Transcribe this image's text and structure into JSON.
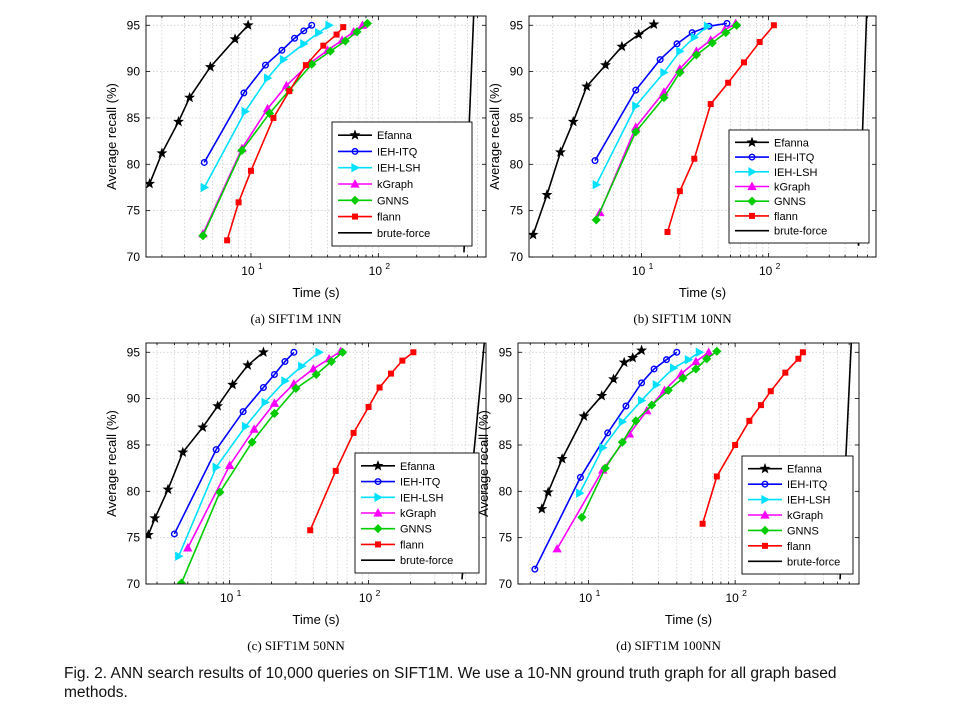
{
  "figure": {
    "caption_line1": "Fig. 2.  ANN search results of 10,000 queries on SIFT1M. We use a 10-NN ground truth graph for all graph based",
    "caption_line2": "methods."
  },
  "styles": {
    "Efanna": {
      "color": "#000000",
      "marker": "star"
    },
    "IEH-ITQ": {
      "color": "#0000ff",
      "marker": "circle"
    },
    "IEH-LSH": {
      "color": "#00e0ff",
      "marker": "triangle-right"
    },
    "kGraph": {
      "color": "#ff00ff",
      "marker": "triangle-up"
    },
    "GNNS": {
      "color": "#00cc00",
      "marker": "diamond"
    },
    "flann": {
      "color": "#ff0000",
      "marker": "square"
    },
    "brute-force": {
      "color": "#000000",
      "marker": "none"
    }
  },
  "chart_data": [
    {
      "type": "line",
      "subcaption": "(a) SIFT1M 1NN",
      "xlabel": "Time (s)",
      "ylabel": "Average recall (%)",
      "xscale": "log",
      "xlim": [
        1.5,
        700
      ],
      "ylim": [
        70,
        96
      ],
      "xticks": [
        10,
        100
      ],
      "xtick_labels": [
        [
          "10",
          "1"
        ],
        [
          "10",
          "2"
        ]
      ],
      "yticks": [
        70,
        75,
        80,
        85,
        90,
        95
      ],
      "grid": true,
      "legend": "center-right",
      "series": [
        {
          "name": "Efanna",
          "x": [
            1.6,
            2.0,
            2.7,
            3.3,
            4.8,
            7.5,
            9.5
          ],
          "y": [
            77.9,
            81.2,
            84.6,
            87.2,
            90.5,
            93.5,
            95.0
          ]
        },
        {
          "name": "IEH-ITQ",
          "x": [
            4.3,
            8.8,
            13.0,
            17.5,
            22.0,
            26.0,
            30.0
          ],
          "y": [
            80.2,
            87.7,
            90.7,
            92.3,
            93.6,
            94.4,
            95.0
          ]
        },
        {
          "name": "IEH-LSH",
          "x": [
            4.3,
            9.0,
            13.5,
            18.0,
            26.0,
            34.0,
            41.0
          ],
          "y": [
            77.5,
            85.7,
            89.3,
            91.3,
            93.0,
            94.2,
            95.0
          ]
        },
        {
          "name": "kGraph",
          "x": [
            4.2,
            8.5,
            13.5,
            19.0,
            29.0,
            40.0,
            52.0,
            64.0,
            75.0
          ],
          "y": [
            72.5,
            81.7,
            86.0,
            88.5,
            90.9,
            92.3,
            93.4,
            94.3,
            95.0
          ]
        },
        {
          "name": "GNNS",
          "x": [
            4.2,
            8.5,
            14.0,
            20.0,
            30.0,
            42.0,
            55.0,
            68.0,
            82.0
          ],
          "y": [
            72.3,
            81.5,
            85.5,
            88.0,
            90.8,
            92.2,
            93.3,
            94.3,
            95.2
          ]
        },
        {
          "name": "flann",
          "x": [
            6.5,
            8.0,
            10.0,
            15.0,
            20.0,
            27.0,
            37.0,
            47.0,
            53.0
          ],
          "y": [
            71.8,
            75.9,
            79.3,
            85.0,
            87.9,
            90.7,
            92.8,
            94.0,
            94.8
          ]
        },
        {
          "name": "brute-force",
          "x": [
            470,
            560
          ],
          "y": [
            70.5,
            96.0
          ]
        }
      ]
    },
    {
      "type": "line",
      "subcaption": "(b) SIFT1M 10NN",
      "xlabel": "Time (s)",
      "ylabel": "Average recall (%)",
      "xscale": "log",
      "xlim": [
        1.3,
        700
      ],
      "ylim": [
        70,
        96
      ],
      "xticks": [
        10,
        100
      ],
      "xtick_labels": [
        [
          "10",
          "1"
        ],
        [
          "10",
          "2"
        ]
      ],
      "yticks": [
        70,
        75,
        80,
        85,
        90,
        95
      ],
      "grid": true,
      "legend": "bottom-right",
      "series": [
        {
          "name": "Efanna",
          "x": [
            1.4,
            1.8,
            2.3,
            2.9,
            3.7,
            5.2,
            7.0,
            9.5,
            12.5
          ],
          "y": [
            72.4,
            76.7,
            81.3,
            84.6,
            88.4,
            90.7,
            92.7,
            94.0,
            95.1
          ]
        },
        {
          "name": "IEH-ITQ",
          "x": [
            4.3,
            9.0,
            14.0,
            19.0,
            25.0,
            34.0,
            47.0
          ],
          "y": [
            80.4,
            88.0,
            91.3,
            93.0,
            94.2,
            94.9,
            95.2
          ]
        },
        {
          "name": "IEH-LSH",
          "x": [
            4.4,
            9.0,
            15.0,
            20.0,
            26.0,
            33.0
          ],
          "y": [
            77.8,
            86.3,
            89.9,
            92.2,
            93.7,
            94.9
          ]
        },
        {
          "name": "kGraph",
          "x": [
            4.7,
            9.0,
            15.0,
            20.0,
            27.0,
            35.0,
            45.0,
            55.0
          ],
          "y": [
            74.8,
            84.0,
            87.8,
            90.3,
            92.2,
            93.4,
            94.5,
            95.2
          ]
        },
        {
          "name": "GNNS",
          "x": [
            4.4,
            9.0,
            15.0,
            20.0,
            27.0,
            36.0,
            46.0,
            56.0
          ],
          "y": [
            74.0,
            83.5,
            87.2,
            89.9,
            91.8,
            93.1,
            94.2,
            95.0
          ]
        },
        {
          "name": "flann",
          "x": [
            16.0,
            20.0,
            26.0,
            35.0,
            48.0,
            64.0,
            85.0,
            110.0
          ],
          "y": [
            72.7,
            77.1,
            80.6,
            86.5,
            88.8,
            91.0,
            93.2,
            95.0
          ]
        },
        {
          "name": "brute-force",
          "x": [
            510,
            590
          ],
          "y": [
            71.2,
            96.0
          ]
        }
      ]
    },
    {
      "type": "line",
      "subcaption": "(c) SIFT1M 50NN",
      "xlabel": "Time (s)",
      "ylabel": "Average recall (%)",
      "xscale": "log",
      "xlim": [
        2.5,
        700
      ],
      "ylim": [
        70,
        96
      ],
      "xticks": [
        10,
        100
      ],
      "xtick_labels": [
        [
          "10",
          "1"
        ],
        [
          "10",
          "2"
        ]
      ],
      "yticks": [
        70,
        75,
        80,
        85,
        90,
        95
      ],
      "grid": true,
      "legend": "bottom-right",
      "series": [
        {
          "name": "Efanna",
          "x": [
            2.6,
            2.9,
            3.6,
            4.6,
            6.4,
            8.2,
            10.5,
            13.5,
            17.5
          ],
          "y": [
            75.3,
            77.1,
            80.2,
            84.2,
            86.9,
            89.2,
            91.5,
            93.6,
            95.0
          ]
        },
        {
          "name": "IEH-ITQ",
          "x": [
            4.0,
            8.0,
            12.5,
            17.5,
            21.0,
            25.0,
            29.0
          ],
          "y": [
            75.4,
            84.5,
            88.6,
            91.2,
            92.6,
            94.0,
            95.0
          ]
        },
        {
          "name": "IEH-LSH",
          "x": [
            4.3,
            8.0,
            13.0,
            18.0,
            25.0,
            33.0,
            44.0
          ],
          "y": [
            73.0,
            82.6,
            87.0,
            89.6,
            91.9,
            93.5,
            95.0
          ]
        },
        {
          "name": "kGraph",
          "x": [
            5.0,
            10.0,
            15.0,
            21.0,
            29.0,
            40.0,
            52.0,
            63.0
          ],
          "y": [
            73.9,
            82.8,
            86.7,
            89.5,
            91.6,
            93.2,
            94.3,
            95.1
          ]
        },
        {
          "name": "GNNS",
          "x": [
            4.5,
            8.5,
            14.5,
            21.0,
            30.0,
            42.0,
            54.0,
            65.0
          ],
          "y": [
            70.1,
            79.9,
            85.3,
            88.4,
            91.1,
            92.6,
            94.0,
            95.0
          ]
        },
        {
          "name": "flann",
          "x": [
            38.0,
            58.0,
            78.0,
            100.0,
            120.0,
            145.0,
            175.0,
            210.0
          ],
          "y": [
            75.8,
            82.2,
            86.3,
            89.1,
            91.2,
            92.7,
            94.1,
            95.0
          ]
        },
        {
          "name": "brute-force",
          "x": [
            470,
            680
          ],
          "y": [
            70.5,
            96.0
          ]
        }
      ]
    },
    {
      "type": "line",
      "subcaption": "(d) SIFT1M 100NN",
      "xlabel": "Time (s)",
      "ylabel": "Average recall (%)",
      "xscale": "log",
      "xlim": [
        3.3,
        700
      ],
      "ylim": [
        70,
        96
      ],
      "xticks": [
        10,
        100
      ],
      "xtick_labels": [
        [
          "10",
          "1"
        ],
        [
          "10",
          "2"
        ]
      ],
      "yticks": [
        70,
        75,
        80,
        85,
        90,
        95
      ],
      "grid": true,
      "legend": "bottom-right",
      "series": [
        {
          "name": "Efanna",
          "x": [
            4.8,
            5.3,
            6.6,
            9.3,
            12.3,
            14.8,
            17.5,
            20.0,
            23.0
          ],
          "y": [
            78.1,
            79.9,
            83.5,
            88.1,
            90.3,
            92.1,
            93.9,
            94.4,
            95.2
          ]
        },
        {
          "name": "IEH-ITQ",
          "x": [
            4.3,
            8.8,
            13.5,
            18.0,
            23.0,
            28.0,
            34.0,
            40.0
          ],
          "y": [
            71.6,
            81.5,
            86.3,
            89.2,
            91.7,
            93.2,
            94.2,
            95.0
          ]
        },
        {
          "name": "IEH-LSH",
          "x": [
            8.7,
            12.5,
            17.0,
            23.0,
            29.0,
            38.0,
            48.0,
            57.0
          ],
          "y": [
            79.8,
            84.7,
            87.5,
            89.8,
            91.5,
            93.3,
            94.2,
            95.0
          ]
        },
        {
          "name": "kGraph",
          "x": [
            6.1,
            12.5,
            19.0,
            25.0,
            33.0,
            43.0,
            54.0,
            66.0
          ],
          "y": [
            73.8,
            82.3,
            86.2,
            88.7,
            90.9,
            92.7,
            94.0,
            95.0
          ]
        },
        {
          "name": "GNNS",
          "x": [
            9.0,
            13.0,
            17.0,
            21.0,
            27.0,
            35.0,
            44.0,
            54.0,
            64.0,
            75.0
          ],
          "y": [
            77.2,
            82.5,
            85.3,
            87.6,
            89.3,
            90.9,
            92.2,
            93.2,
            94.3,
            95.1
          ]
        },
        {
          "name": "flann",
          "x": [
            60.0,
            75.0,
            100.0,
            125.0,
            150.0,
            175.0,
            220.0,
            270.0,
            290.0
          ],
          "y": [
            76.5,
            81.6,
            85.0,
            87.6,
            89.3,
            90.8,
            92.8,
            94.3,
            95.0
          ]
        },
        {
          "name": "brute-force",
          "x": [
            520,
            620
          ],
          "y": [
            70.5,
            96.0
          ]
        }
      ]
    }
  ]
}
